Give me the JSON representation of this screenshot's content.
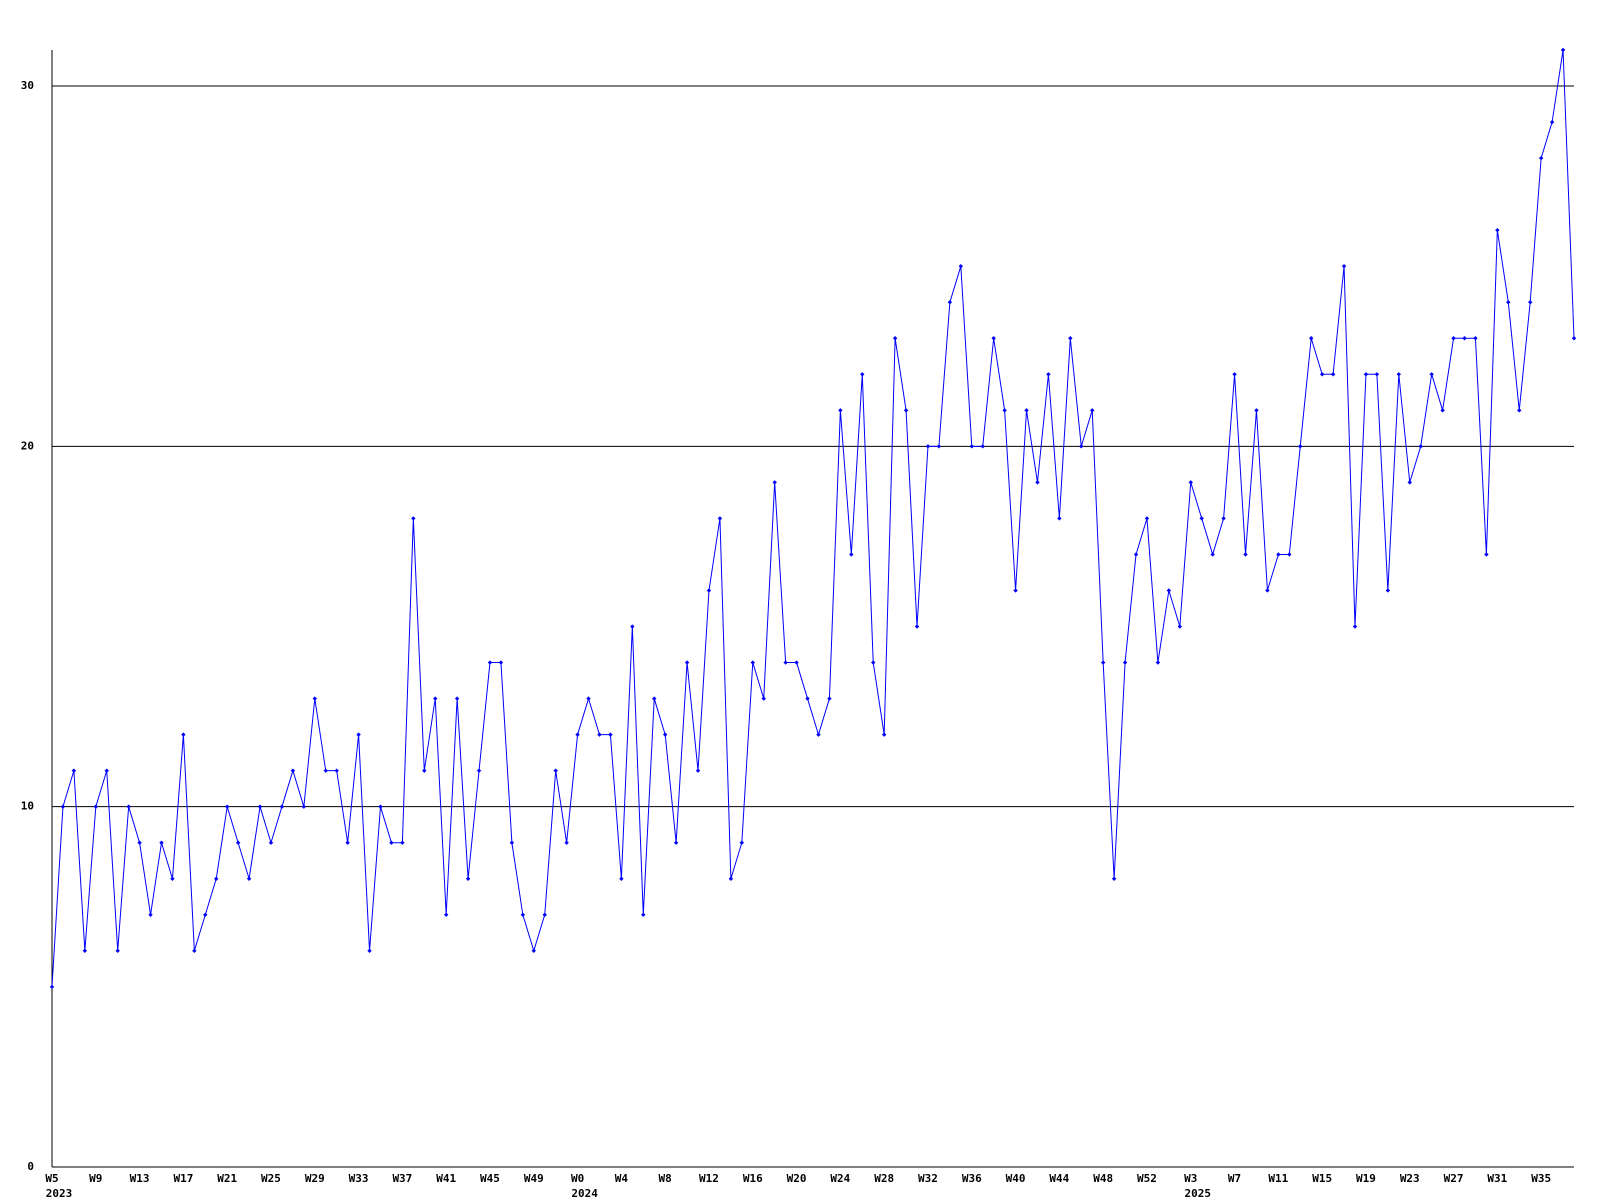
{
  "chart_data": {
    "type": "line",
    "categories": [
      "W5",
      null,
      null,
      null,
      "W9",
      null,
      null,
      null,
      "W13",
      null,
      null,
      null,
      "W17",
      null,
      null,
      null,
      "W21",
      null,
      null,
      null,
      "W25",
      null,
      null,
      null,
      "W29",
      null,
      null,
      null,
      "W33",
      null,
      null,
      null,
      "W37",
      null,
      null,
      null,
      "W41",
      null,
      null,
      null,
      "W45",
      null,
      null,
      null,
      "W49",
      null,
      null,
      null,
      "W0",
      null,
      null,
      null,
      "W4",
      null,
      null,
      null,
      "W8",
      null,
      null,
      null,
      "W12",
      null,
      null,
      null,
      "W16",
      null,
      null,
      null,
      "W20",
      null,
      null,
      null,
      "W24",
      null,
      null,
      null,
      "W28",
      null,
      null,
      null,
      "W32",
      null,
      null,
      null,
      "W36",
      null,
      null,
      null,
      "W40",
      null,
      null,
      null,
      "W44",
      null,
      null,
      null,
      "W48",
      null,
      null,
      null,
      "W52",
      null,
      null,
      null,
      "W3",
      null,
      null,
      null,
      "W7",
      null,
      null,
      null,
      "W11",
      null,
      null,
      null,
      "W15",
      null,
      null,
      null,
      "W19",
      null,
      null,
      null,
      "W23",
      null,
      null,
      null,
      "W27",
      null,
      null,
      null,
      "W31",
      null,
      null,
      null,
      "W35",
      null,
      null,
      null
    ],
    "category_years": [
      "2023",
      null,
      null,
      null,
      null,
      null,
      null,
      null,
      null,
      null,
      null,
      null,
      null,
      null,
      null,
      null,
      null,
      null,
      null,
      null,
      null,
      null,
      null,
      null,
      null,
      null,
      null,
      null,
      null,
      null,
      null,
      null,
      null,
      null,
      null,
      null,
      null,
      null,
      null,
      null,
      null,
      null,
      null,
      null,
      null,
      null,
      null,
      null,
      "2024",
      null,
      null,
      null,
      null,
      null,
      null,
      null,
      null,
      null,
      null,
      null,
      null,
      null,
      null,
      null,
      null,
      null,
      null,
      null,
      null,
      null,
      null,
      null,
      null,
      null,
      null,
      null,
      null,
      null,
      null,
      null,
      null,
      null,
      null,
      null,
      null,
      null,
      null,
      null,
      null,
      null,
      null,
      null,
      null,
      null,
      null,
      null,
      null,
      null,
      null,
      null,
      null,
      null,
      null,
      null,
      "2025",
      null,
      null,
      null,
      null,
      null,
      null,
      null,
      null,
      null,
      null,
      null,
      null,
      null,
      null,
      null,
      null,
      null,
      null,
      null,
      null,
      null,
      null,
      null,
      null,
      null,
      null,
      null,
      null,
      null,
      null,
      null,
      null,
      null,
      null,
      null
    ],
    "series": [
      {
        "color": "#0000ff",
        "values": [
          5,
          10,
          11,
          6,
          10,
          11,
          6,
          10,
          9,
          7,
          9,
          8,
          12,
          6,
          7,
          8,
          10,
          9,
          8,
          10,
          9,
          10,
          11,
          10,
          13,
          11,
          11,
          9,
          12,
          6,
          10,
          9,
          9,
          18,
          11,
          13,
          7,
          13,
          8,
          11,
          14,
          14,
          9,
          7,
          6,
          7,
          11,
          9,
          12,
          13,
          12,
          12,
          8,
          15,
          7,
          13,
          12,
          9,
          14,
          11,
          16,
          18,
          8,
          9,
          14,
          13,
          19,
          14,
          14,
          13,
          12,
          13,
          21,
          17,
          22,
          14,
          12,
          23,
          21,
          15,
          20,
          20,
          24,
          25,
          20,
          20,
          23,
          21,
          16,
          21,
          19,
          22,
          18,
          23,
          20,
          21,
          14,
          8,
          14,
          17,
          18,
          14,
          16,
          15,
          19,
          18,
          17,
          18,
          22,
          17,
          21,
          16,
          17,
          17,
          20,
          23,
          22,
          22,
          25,
          15,
          22,
          22,
          16,
          22,
          19,
          20,
          22,
          21,
          23,
          23,
          23,
          17,
          26,
          24,
          21,
          24,
          28,
          29,
          31,
          23
        ]
      }
    ],
    "ylim": [
      0,
      31
    ],
    "yticks": [
      0,
      10,
      20,
      30
    ],
    "grid": true
  }
}
